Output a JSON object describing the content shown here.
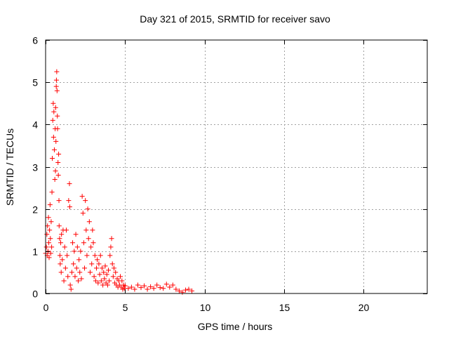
{
  "chart_data": {
    "type": "scatter",
    "title": "Day 321 of 2015, SRMTID for receiver savo",
    "xlabel": "GPS time / hours",
    "ylabel": "SRMTID / TECUs",
    "xlim": [
      0,
      24
    ],
    "ylim": [
      0,
      6
    ],
    "xticks": [
      0,
      5,
      10,
      15,
      20
    ],
    "yticks": [
      0,
      1,
      2,
      3,
      4,
      5,
      6
    ],
    "grid": true,
    "marker": "+",
    "color": "#ff0000",
    "series": [
      {
        "name": "SRMTID",
        "points": [
          [
            0.0,
            0.95
          ],
          [
            0.05,
            1.1
          ],
          [
            0.08,
            1.4
          ],
          [
            0.1,
            0.9
          ],
          [
            0.12,
            1.6
          ],
          [
            0.15,
            1.0
          ],
          [
            0.18,
            1.8
          ],
          [
            0.2,
            1.2
          ],
          [
            0.22,
            0.85
          ],
          [
            0.25,
            1.5
          ],
          [
            0.28,
            2.1
          ],
          [
            0.3,
            1.3
          ],
          [
            0.32,
            0.95
          ],
          [
            0.35,
            1.7
          ],
          [
            0.38,
            1.1
          ],
          [
            0.4,
            2.4
          ],
          [
            0.42,
            3.2
          ],
          [
            0.45,
            4.1
          ],
          [
            0.48,
            4.5
          ],
          [
            0.5,
            3.7
          ],
          [
            0.52,
            4.3
          ],
          [
            0.55,
            3.4
          ],
          [
            0.58,
            2.7
          ],
          [
            0.6,
            3.9
          ],
          [
            0.62,
            2.9
          ],
          [
            0.63,
            4.4
          ],
          [
            0.65,
            3.6
          ],
          [
            0.67,
            4.9
          ],
          [
            0.68,
            5.05
          ],
          [
            0.7,
            5.25
          ],
          [
            0.72,
            4.8
          ],
          [
            0.74,
            4.2
          ],
          [
            0.75,
            3.9
          ],
          [
            0.78,
            3.1
          ],
          [
            0.8,
            2.8
          ],
          [
            0.82,
            3.3
          ],
          [
            0.84,
            2.2
          ],
          [
            0.85,
            1.6
          ],
          [
            0.88,
            1.3
          ],
          [
            0.9,
            0.9
          ],
          [
            0.92,
            0.7
          ],
          [
            0.95,
            1.2
          ],
          [
            0.98,
            0.5
          ],
          [
            1.0,
            1.4
          ],
          [
            1.05,
            0.8
          ],
          [
            1.1,
            1.5
          ],
          [
            1.15,
            0.3
          ],
          [
            1.2,
            1.1
          ],
          [
            1.25,
            0.6
          ],
          [
            1.3,
            1.5
          ],
          [
            1.35,
            0.9
          ],
          [
            1.4,
            0.4
          ],
          [
            1.45,
            2.2
          ],
          [
            1.5,
            2.6
          ],
          [
            1.52,
            2.05
          ],
          [
            1.55,
            0.2
          ],
          [
            1.6,
            0.1
          ],
          [
            1.65,
            0.5
          ],
          [
            1.7,
            1.2
          ],
          [
            1.75,
            0.7
          ],
          [
            1.8,
            1.0
          ],
          [
            1.85,
            0.4
          ],
          [
            1.9,
            1.4
          ],
          [
            1.95,
            0.6
          ],
          [
            2.0,
            1.1
          ],
          [
            2.05,
            0.3
          ],
          [
            2.1,
            0.8
          ],
          [
            2.15,
            0.5
          ],
          [
            2.2,
            1.0
          ],
          [
            2.25,
            0.35
          ],
          [
            2.3,
            2.3
          ],
          [
            2.35,
            1.9
          ],
          [
            2.4,
            1.2
          ],
          [
            2.45,
            0.6
          ],
          [
            2.5,
            2.2
          ],
          [
            2.55,
            1.5
          ],
          [
            2.6,
            0.9
          ],
          [
            2.65,
            2.0
          ],
          [
            2.7,
            1.3
          ],
          [
            2.75,
            1.7
          ],
          [
            2.8,
            0.5
          ],
          [
            2.85,
            1.1
          ],
          [
            2.9,
            0.7
          ],
          [
            2.95,
            1.5
          ],
          [
            3.0,
            1.2
          ],
          [
            3.05,
            0.4
          ],
          [
            3.1,
            0.9
          ],
          [
            3.15,
            0.3
          ],
          [
            3.2,
            0.6
          ],
          [
            3.25,
            0.8
          ],
          [
            3.3,
            0.25
          ],
          [
            3.35,
            0.7
          ],
          [
            3.4,
            0.45
          ],
          [
            3.45,
            0.9
          ],
          [
            3.5,
            0.3
          ],
          [
            3.55,
            0.6
          ],
          [
            3.6,
            0.2
          ],
          [
            3.65,
            0.5
          ],
          [
            3.7,
            0.35
          ],
          [
            3.75,
            0.65
          ],
          [
            3.8,
            0.25
          ],
          [
            3.85,
            0.45
          ],
          [
            3.9,
            0.2
          ],
          [
            3.95,
            0.55
          ],
          [
            4.0,
            0.3
          ],
          [
            4.05,
            0.9
          ],
          [
            4.1,
            1.1
          ],
          [
            4.15,
            1.3
          ],
          [
            4.2,
            0.7
          ],
          [
            4.25,
            0.4
          ],
          [
            4.3,
            0.6
          ],
          [
            4.35,
            0.25
          ],
          [
            4.4,
            0.5
          ],
          [
            4.45,
            0.2
          ],
          [
            4.5,
            0.35
          ],
          [
            4.55,
            0.15
          ],
          [
            4.6,
            0.3
          ],
          [
            4.65,
            0.2
          ],
          [
            4.7,
            0.4
          ],
          [
            4.75,
            0.15
          ],
          [
            4.8,
            0.3
          ],
          [
            4.85,
            0.1
          ],
          [
            4.9,
            0.2
          ],
          [
            4.95,
            0.12
          ],
          [
            5.0,
            0.18
          ],
          [
            5.2,
            0.12
          ],
          [
            5.4,
            0.15
          ],
          [
            5.6,
            0.1
          ],
          [
            5.8,
            0.2
          ],
          [
            6.0,
            0.14
          ],
          [
            6.2,
            0.18
          ],
          [
            6.4,
            0.1
          ],
          [
            6.6,
            0.16
          ],
          [
            6.8,
            0.12
          ],
          [
            7.0,
            0.2
          ],
          [
            7.2,
            0.14
          ],
          [
            7.4,
            0.12
          ],
          [
            7.6,
            0.22
          ],
          [
            7.8,
            0.15
          ],
          [
            8.0,
            0.2
          ],
          [
            8.2,
            0.1
          ],
          [
            8.4,
            0.06
          ],
          [
            8.6,
            0.03
          ],
          [
            8.8,
            0.08
          ],
          [
            9.0,
            0.1
          ],
          [
            9.2,
            0.06
          ]
        ]
      }
    ]
  }
}
